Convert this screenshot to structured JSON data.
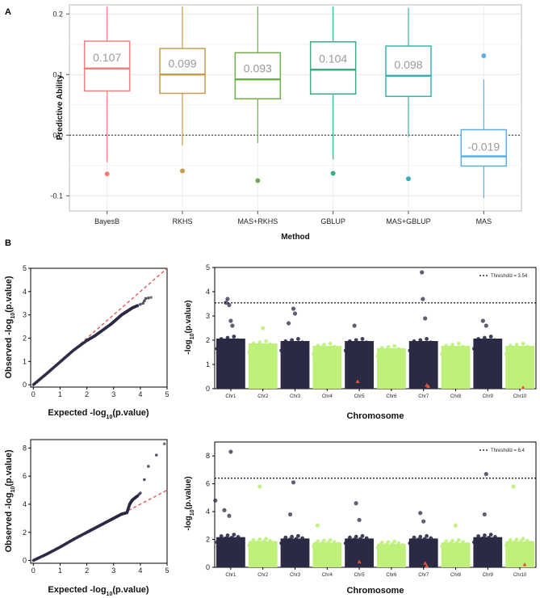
{
  "figure": {
    "label_a": "A",
    "label_b": "B"
  },
  "chart_data": [
    {
      "type": "box",
      "panel": "A",
      "title": "",
      "xlabel": "Method",
      "ylabel": "Predictive Ability",
      "ylim": [
        -0.125,
        0.215
      ],
      "yticks": [
        -0.1,
        0.0,
        0.1,
        0.2
      ],
      "ytick_labels": [
        "-0.1",
        "0.0",
        "0.1",
        "0.2"
      ],
      "reference_line": 0.0,
      "grid": true,
      "categories": [
        "BayesB",
        "RKHS",
        "MAS+RKHS",
        "GBLUP",
        "MAS+GBLUP",
        "MAS"
      ],
      "series": [
        {
          "name": "BayesB",
          "color": "#F08080",
          "whisker_low": -0.045,
          "q1": 0.073,
          "median": 0.11,
          "q3": 0.155,
          "whisker_high": 0.212,
          "outliers": [
            -0.064
          ],
          "label": "0.107"
        },
        {
          "name": "RKHS",
          "color": "#C99A4B",
          "whisker_low": -0.017,
          "q1": 0.069,
          "median": 0.1,
          "q3": 0.143,
          "whisker_high": 0.212,
          "outliers": [
            -0.059
          ],
          "label": "0.099"
        },
        {
          "name": "MAS+RKHS",
          "color": "#6FAF4A",
          "whisker_low": -0.013,
          "q1": 0.06,
          "median": 0.092,
          "q3": 0.136,
          "whisker_high": 0.212,
          "outliers": [
            -0.075
          ],
          "label": "0.093"
        },
        {
          "name": "GBLUP",
          "color": "#3DAE7F",
          "whisker_low": -0.04,
          "q1": 0.068,
          "median": 0.108,
          "q3": 0.154,
          "whisker_high": 0.212,
          "outliers": [
            -0.063
          ],
          "label": "0.104"
        },
        {
          "name": "MAS+GBLUP",
          "color": "#3BB0B0",
          "whisker_low": -0.003,
          "q1": 0.064,
          "median": 0.098,
          "q3": 0.147,
          "whisker_high": 0.21,
          "outliers": [
            -0.072
          ],
          "label": "0.098"
        },
        {
          "name": "MAS",
          "color": "#5AAFE8",
          "whisker_low": -0.104,
          "q1": -0.051,
          "median": -0.035,
          "q3": 0.009,
          "whisker_high": 0.092,
          "outliers": [
            0.131
          ],
          "label": "-0.019"
        }
      ]
    },
    {
      "type": "scatter",
      "panel": "B-qq-top",
      "title": "",
      "xlabel": "Expected -log10(p.value)",
      "ylabel": "Observed -log10(p.value)",
      "xlim": [
        -0.1,
        5.0
      ],
      "ylim": [
        -0.1,
        5.0
      ],
      "xticks": [
        "0",
        "1",
        "2",
        "3",
        "4",
        "5"
      ],
      "yticks": [
        "0",
        "1",
        "2",
        "3",
        "4",
        "5"
      ],
      "reference_line": "y = x (red dashed)",
      "points": [
        [
          0,
          0
        ],
        [
          0.5,
          0.48
        ],
        [
          1.0,
          0.98
        ],
        [
          1.5,
          1.48
        ],
        [
          2.0,
          1.9
        ],
        [
          2.3,
          2.1
        ],
        [
          2.6,
          2.35
        ],
        [
          2.9,
          2.6
        ],
        [
          3.1,
          2.8
        ],
        [
          3.3,
          3.0
        ],
        [
          3.5,
          3.15
        ],
        [
          3.7,
          3.3
        ],
        [
          3.9,
          3.4
        ],
        [
          4.1,
          3.5
        ],
        [
          4.2,
          3.7
        ],
        [
          4.4,
          3.75
        ]
      ]
    },
    {
      "type": "scatter",
      "panel": "B-manhattan-top",
      "title": "",
      "xlabel": "Chromosome",
      "ylabel": "-log10(p.value)",
      "ylim": [
        0,
        5
      ],
      "yticks": [
        "0",
        "1",
        "2",
        "3",
        "4",
        "5"
      ],
      "categories": [
        "Chr1",
        "Chr2",
        "Chr3",
        "Chr4",
        "Chr5",
        "Chr6",
        "Chr7",
        "Chr8",
        "Chr9",
        "Chr10"
      ],
      "threshold": 3.54,
      "threshold_label": "Threshold = 3.54",
      "band_max": [
        2.2,
        2.0,
        2.1,
        1.9,
        2.1,
        1.8,
        2.1,
        1.9,
        2.2,
        1.9
      ],
      "colors": [
        "#2b2a45",
        "#bff07a"
      ],
      "peaks": [
        [
          0.4,
          3.7
        ],
        [
          0.35,
          3.55
        ],
        [
          0.45,
          3.45
        ],
        [
          0.5,
          2.8
        ],
        [
          0.55,
          2.6
        ],
        [
          2.45,
          3.3
        ],
        [
          2.5,
          3.1
        ],
        [
          2.3,
          2.7
        ],
        [
          4.35,
          2.6
        ],
        [
          6.45,
          4.8
        ],
        [
          6.48,
          3.7
        ],
        [
          6.55,
          2.9
        ],
        [
          8.35,
          2.8
        ],
        [
          8.45,
          2.6
        ],
        [
          1.5,
          2.5
        ]
      ],
      "markers": [
        [
          4.45,
          0.3
        ],
        [
          6.6,
          0.15
        ],
        [
          6.65,
          0.1
        ],
        [
          9.6,
          0.05
        ]
      ]
    },
    {
      "type": "scatter",
      "panel": "B-qq-bottom",
      "title": "",
      "xlabel": "Expected -log10(p.value)",
      "ylabel": "Observed -log10(p.value)",
      "xlim": [
        -0.1,
        5.0
      ],
      "ylim": [
        -0.2,
        8.6
      ],
      "xticks": [
        "0",
        "1",
        "2",
        "3",
        "4",
        "5"
      ],
      "yticks": [
        "0",
        "2",
        "4",
        "6",
        "8"
      ],
      "reference_line": "y = x (red dashed)",
      "points": [
        [
          0,
          0
        ],
        [
          0.5,
          0.45
        ],
        [
          1.0,
          0.95
        ],
        [
          1.5,
          1.5
        ],
        [
          2.0,
          2.0
        ],
        [
          2.3,
          2.3
        ],
        [
          2.6,
          2.6
        ],
        [
          2.9,
          2.9
        ],
        [
          3.1,
          3.1
        ],
        [
          3.3,
          3.3
        ],
        [
          3.5,
          3.4
        ],
        [
          3.6,
          4.0
        ],
        [
          3.7,
          4.3
        ],
        [
          3.9,
          4.6
        ],
        [
          4.0,
          4.8
        ],
        [
          4.3,
          6.7
        ],
        [
          4.9,
          8.3
        ]
      ]
    },
    {
      "type": "scatter",
      "panel": "B-manhattan-bottom",
      "title": "",
      "xlabel": "Chromosome",
      "ylabel": "-log10(p.value)",
      "ylim": [
        0,
        9
      ],
      "yticks": [
        "0",
        "2",
        "4",
        "6",
        "8"
      ],
      "categories": [
        "Chr1",
        "Chr2",
        "Chr3",
        "Chr4",
        "Chr5",
        "Chr6",
        "Chr7",
        "Chr8",
        "Chr9",
        "Chr10"
      ],
      "threshold": 6.4,
      "threshold_label": "Threshold = 6.4",
      "band_max": [
        2.4,
        2.1,
        2.3,
        2.0,
        2.3,
        1.9,
        2.3,
        2.0,
        2.4,
        2.1
      ],
      "colors": [
        "#2b2a45",
        "#bff07a"
      ],
      "peaks": [
        [
          0.5,
          8.3
        ],
        [
          0.02,
          4.8
        ],
        [
          0.3,
          4.1
        ],
        [
          0.45,
          3.7
        ],
        [
          1.4,
          5.8
        ],
        [
          2.45,
          6.1
        ],
        [
          2.35,
          3.8
        ],
        [
          4.4,
          4.6
        ],
        [
          4.5,
          3.4
        ],
        [
          6.4,
          3.9
        ],
        [
          6.5,
          3.3
        ],
        [
          8.45,
          6.7
        ],
        [
          8.4,
          3.8
        ],
        [
          9.3,
          5.8
        ],
        [
          3.2,
          3.0
        ],
        [
          7.5,
          3.0
        ]
      ],
      "markers": [
        [
          4.5,
          0.4
        ],
        [
          6.55,
          0.3
        ],
        [
          6.6,
          0.1
        ],
        [
          9.65,
          0.2
        ]
      ]
    }
  ]
}
